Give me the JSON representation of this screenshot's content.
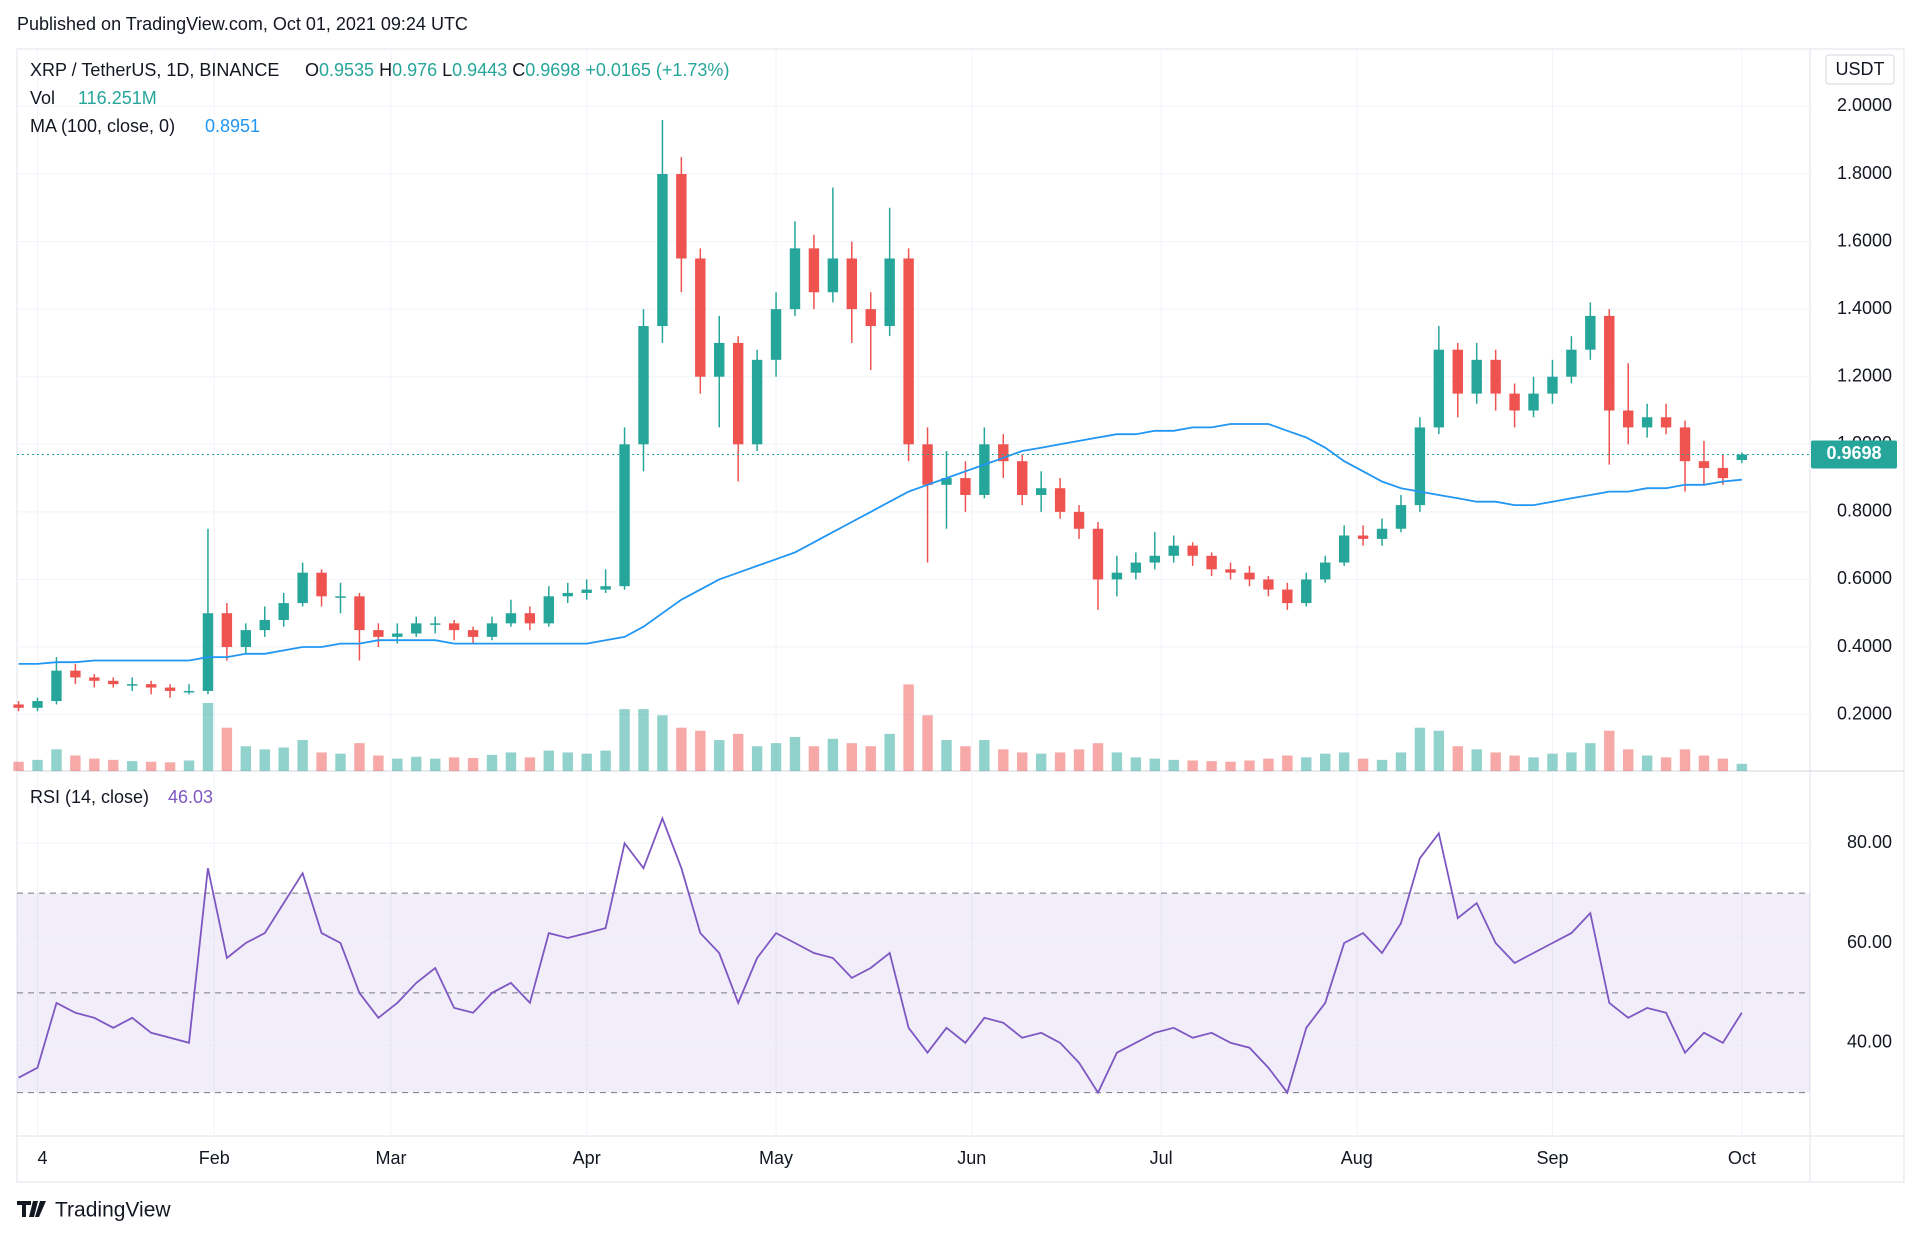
{
  "header": {
    "published": "Published on TradingView.com, Oct 01, 2021 09:24 UTC",
    "symbol": "XRP / TetherUS, 1D, BINANCE",
    "ohlc_letters": [
      "O",
      "H",
      "L",
      "C"
    ],
    "change": "+0.0165 (+1.73%)",
    "vol_value": "116.251M",
    "currency": "USDT",
    "logo": "TradingView"
  },
  "chart_data": [
    {
      "type": "candlestick",
      "up_color": "#26a69a",
      "down_color": "#ef5350",
      "x": [
        0,
        3,
        6,
        9,
        12,
        15,
        18,
        21,
        24,
        27,
        30,
        33,
        36,
        39,
        42,
        45,
        48,
        51,
        54,
        57,
        60,
        63,
        66,
        69,
        72,
        75,
        78,
        81,
        84,
        87,
        90,
        93,
        96,
        99,
        102,
        105,
        108,
        111,
        114,
        117,
        120,
        123,
        126,
        129,
        132,
        135,
        138,
        141,
        144,
        147,
        150,
        153,
        156,
        159,
        162,
        165,
        168,
        171,
        174,
        177,
        180,
        183,
        186,
        189,
        192,
        195,
        198,
        201,
        204,
        207,
        210,
        213,
        216,
        219,
        222,
        225,
        228,
        231,
        234,
        237,
        240,
        243,
        246,
        249,
        252,
        255,
        258,
        261,
        264,
        267,
        270,
        273
      ],
      "candles": [
        [
          0.23,
          0.24,
          0.21,
          0.22
        ],
        [
          0.22,
          0.25,
          0.21,
          0.24
        ],
        [
          0.24,
          0.37,
          0.23,
          0.33
        ],
        [
          0.33,
          0.35,
          0.29,
          0.31
        ],
        [
          0.31,
          0.32,
          0.28,
          0.3
        ],
        [
          0.3,
          0.31,
          0.28,
          0.29
        ],
        [
          0.29,
          0.31,
          0.27,
          0.29
        ],
        [
          0.29,
          0.3,
          0.26,
          0.28
        ],
        [
          0.28,
          0.29,
          0.25,
          0.27
        ],
        [
          0.27,
          0.29,
          0.26,
          0.27
        ],
        [
          0.27,
          0.75,
          0.26,
          0.5
        ],
        [
          0.5,
          0.53,
          0.36,
          0.4
        ],
        [
          0.4,
          0.47,
          0.38,
          0.45
        ],
        [
          0.45,
          0.52,
          0.43,
          0.48
        ],
        [
          0.48,
          0.56,
          0.46,
          0.53
        ],
        [
          0.53,
          0.65,
          0.52,
          0.62
        ],
        [
          0.62,
          0.63,
          0.52,
          0.55
        ],
        [
          0.55,
          0.59,
          0.5,
          0.55
        ],
        [
          0.55,
          0.56,
          0.36,
          0.45
        ],
        [
          0.45,
          0.47,
          0.4,
          0.43
        ],
        [
          0.43,
          0.47,
          0.41,
          0.44
        ],
        [
          0.44,
          0.49,
          0.43,
          0.47
        ],
        [
          0.47,
          0.49,
          0.44,
          0.47
        ],
        [
          0.47,
          0.48,
          0.42,
          0.45
        ],
        [
          0.45,
          0.46,
          0.41,
          0.43
        ],
        [
          0.43,
          0.49,
          0.42,
          0.47
        ],
        [
          0.47,
          0.54,
          0.46,
          0.5
        ],
        [
          0.5,
          0.52,
          0.45,
          0.47
        ],
        [
          0.47,
          0.58,
          0.46,
          0.55
        ],
        [
          0.55,
          0.59,
          0.53,
          0.56
        ],
        [
          0.56,
          0.6,
          0.54,
          0.57
        ],
        [
          0.57,
          0.63,
          0.56,
          0.58
        ],
        [
          0.58,
          1.05,
          0.57,
          1.0
        ],
        [
          1.0,
          1.4,
          0.92,
          1.35
        ],
        [
          1.35,
          1.96,
          1.3,
          1.8
        ],
        [
          1.8,
          1.85,
          1.45,
          1.55
        ],
        [
          1.55,
          1.58,
          1.15,
          1.2
        ],
        [
          1.2,
          1.38,
          1.05,
          1.3
        ],
        [
          1.3,
          1.32,
          0.89,
          1.0
        ],
        [
          1.0,
          1.28,
          0.98,
          1.25
        ],
        [
          1.25,
          1.45,
          1.2,
          1.4
        ],
        [
          1.4,
          1.66,
          1.38,
          1.58
        ],
        [
          1.58,
          1.62,
          1.4,
          1.45
        ],
        [
          1.45,
          1.76,
          1.42,
          1.55
        ],
        [
          1.55,
          1.6,
          1.3,
          1.4
        ],
        [
          1.4,
          1.45,
          1.22,
          1.35
        ],
        [
          1.35,
          1.7,
          1.32,
          1.55
        ],
        [
          1.55,
          1.58,
          0.95,
          1.0
        ],
        [
          1.0,
          1.05,
          0.65,
          0.88
        ],
        [
          0.88,
          0.98,
          0.75,
          0.9
        ],
        [
          0.9,
          0.95,
          0.8,
          0.85
        ],
        [
          0.85,
          1.05,
          0.84,
          1.0
        ],
        [
          1.0,
          1.03,
          0.9,
          0.95
        ],
        [
          0.95,
          0.97,
          0.82,
          0.85
        ],
        [
          0.85,
          0.92,
          0.8,
          0.87
        ],
        [
          0.87,
          0.9,
          0.78,
          0.8
        ],
        [
          0.8,
          0.82,
          0.72,
          0.75
        ],
        [
          0.75,
          0.77,
          0.51,
          0.6
        ],
        [
          0.6,
          0.67,
          0.55,
          0.62
        ],
        [
          0.62,
          0.68,
          0.6,
          0.65
        ],
        [
          0.65,
          0.74,
          0.63,
          0.67
        ],
        [
          0.67,
          0.73,
          0.65,
          0.7
        ],
        [
          0.7,
          0.71,
          0.64,
          0.67
        ],
        [
          0.67,
          0.68,
          0.61,
          0.63
        ],
        [
          0.63,
          0.65,
          0.6,
          0.62
        ],
        [
          0.62,
          0.64,
          0.58,
          0.6
        ],
        [
          0.6,
          0.61,
          0.55,
          0.57
        ],
        [
          0.57,
          0.59,
          0.51,
          0.53
        ],
        [
          0.53,
          0.62,
          0.52,
          0.6
        ],
        [
          0.6,
          0.67,
          0.59,
          0.65
        ],
        [
          0.65,
          0.76,
          0.64,
          0.73
        ],
        [
          0.73,
          0.76,
          0.7,
          0.72
        ],
        [
          0.72,
          0.78,
          0.7,
          0.75
        ],
        [
          0.75,
          0.85,
          0.74,
          0.82
        ],
        [
          0.82,
          1.08,
          0.8,
          1.05
        ],
        [
          1.05,
          1.35,
          1.03,
          1.28
        ],
        [
          1.28,
          1.3,
          1.08,
          1.15
        ],
        [
          1.15,
          1.3,
          1.12,
          1.25
        ],
        [
          1.25,
          1.28,
          1.1,
          1.15
        ],
        [
          1.15,
          1.18,
          1.05,
          1.1
        ],
        [
          1.1,
          1.2,
          1.08,
          1.15
        ],
        [
          1.15,
          1.25,
          1.12,
          1.2
        ],
        [
          1.2,
          1.32,
          1.18,
          1.28
        ],
        [
          1.28,
          1.42,
          1.25,
          1.38
        ],
        [
          1.38,
          1.4,
          0.94,
          1.1
        ],
        [
          1.1,
          1.24,
          1.0,
          1.05
        ],
        [
          1.05,
          1.12,
          1.02,
          1.08
        ],
        [
          1.08,
          1.12,
          1.03,
          1.05
        ],
        [
          1.05,
          1.07,
          0.86,
          0.95
        ],
        [
          0.95,
          1.01,
          0.88,
          0.93
        ],
        [
          0.93,
          0.97,
          0.88,
          0.9
        ],
        [
          0.9535,
          0.976,
          0.9443,
          0.9698
        ]
      ],
      "volume": {
        "name": "Vol",
        "values": [
          150,
          180,
          350,
          250,
          200,
          180,
          160,
          150,
          140,
          170,
          1100,
          700,
          400,
          350,
          380,
          500,
          300,
          280,
          450,
          250,
          200,
          230,
          200,
          220,
          210,
          260,
          300,
          220,
          330,
          300,
          280,
          330,
          1000,
          1000,
          900,
          700,
          650,
          500,
          600,
          400,
          450,
          550,
          400,
          520,
          450,
          400,
          600,
          1400,
          900,
          500,
          400,
          500,
          350,
          300,
          280,
          300,
          350,
          450,
          300,
          220,
          200,
          180,
          170,
          160,
          150,
          170,
          200,
          250,
          220,
          280,
          300,
          200,
          180,
          300,
          700,
          650,
          400,
          350,
          300,
          250,
          220,
          280,
          300,
          450,
          650,
          350,
          250,
          220,
          350,
          250,
          200,
          116.251
        ]
      },
      "ma": {
        "name": "MA (100, close, 0)",
        "color": "#2196f3",
        "values": [
          0.35,
          0.35,
          0.355,
          0.355,
          0.36,
          0.36,
          0.36,
          0.36,
          0.36,
          0.36,
          0.37,
          0.37,
          0.38,
          0.38,
          0.39,
          0.4,
          0.4,
          0.41,
          0.41,
          0.42,
          0.42,
          0.42,
          0.42,
          0.41,
          0.41,
          0.41,
          0.41,
          0.41,
          0.41,
          0.41,
          0.41,
          0.42,
          0.43,
          0.46,
          0.5,
          0.54,
          0.57,
          0.6,
          0.62,
          0.64,
          0.66,
          0.68,
          0.71,
          0.74,
          0.77,
          0.8,
          0.83,
          0.86,
          0.88,
          0.9,
          0.92,
          0.94,
          0.96,
          0.98,
          0.99,
          1.0,
          1.01,
          1.02,
          1.03,
          1.03,
          1.04,
          1.04,
          1.05,
          1.05,
          1.06,
          1.06,
          1.06,
          1.04,
          1.02,
          0.99,
          0.95,
          0.92,
          0.89,
          0.87,
          0.86,
          0.85,
          0.84,
          0.83,
          0.83,
          0.82,
          0.82,
          0.83,
          0.84,
          0.85,
          0.86,
          0.86,
          0.87,
          0.87,
          0.88,
          0.88,
          0.89,
          0.8951
        ]
      },
      "xlim": [
        -0.25,
        283.8
      ],
      "ylim": [
        0.033,
        2.17
      ],
      "yticks": [
        {
          "value": 0.2,
          "label": "0.2000"
        },
        {
          "value": 0.4,
          "label": "0.4000"
        },
        {
          "value": 0.6,
          "label": "0.6000"
        },
        {
          "value": 0.8,
          "label": "0.8000"
        },
        {
          "value": 1.0,
          "label": "1.0000"
        },
        {
          "value": 1.2,
          "label": "1.2000"
        },
        {
          "value": 1.4,
          "label": "1.4000"
        },
        {
          "value": 1.6,
          "label": "1.6000"
        },
        {
          "value": 1.8,
          "label": "1.8000"
        },
        {
          "value": 2.0,
          "label": "2.0000"
        }
      ],
      "grid": true
    },
    {
      "type": "line",
      "title": "RSI (14, close)",
      "color": "#7e57c2",
      "x": [
        0,
        3,
        6,
        9,
        12,
        15,
        18,
        21,
        24,
        27,
        30,
        33,
        36,
        39,
        42,
        45,
        48,
        51,
        54,
        57,
        60,
        63,
        66,
        69,
        72,
        75,
        78,
        81,
        84,
        87,
        90,
        93,
        96,
        99,
        102,
        105,
        108,
        111,
        114,
        117,
        120,
        123,
        126,
        129,
        132,
        135,
        138,
        141,
        144,
        147,
        150,
        153,
        156,
        159,
        162,
        165,
        168,
        171,
        174,
        177,
        180,
        183,
        186,
        189,
        192,
        195,
        198,
        201,
        204,
        207,
        210,
        213,
        216,
        219,
        222,
        225,
        228,
        231,
        234,
        237,
        240,
        243,
        246,
        249,
        252,
        255,
        258,
        261,
        264,
        267,
        270,
        273
      ],
      "values": [
        33,
        35,
        48,
        46,
        45,
        43,
        45,
        42,
        41,
        40,
        75,
        57,
        60,
        62,
        68,
        74,
        62,
        60,
        50,
        45,
        48,
        52,
        55,
        47,
        46,
        50,
        52,
        48,
        62,
        61,
        62,
        63,
        80,
        75,
        85,
        75,
        62,
        58,
        48,
        57,
        62,
        60,
        58,
        57,
        53,
        55,
        58,
        43,
        38,
        43,
        40,
        45,
        44,
        41,
        42,
        40,
        36,
        30,
        38,
        40,
        42,
        43,
        41,
        42,
        40,
        39,
        35,
        30,
        43,
        48,
        60,
        62,
        58,
        64,
        77,
        82,
        65,
        68,
        60,
        56,
        58,
        60,
        62,
        66,
        48,
        45,
        47,
        46,
        38,
        42,
        40,
        46.03
      ],
      "bands": [
        30,
        50,
        70
      ],
      "xlim": [
        -0.25,
        283.8
      ],
      "ylim": [
        21.3,
        94.5
      ],
      "yticks": [
        {
          "value": 40,
          "label": "40.00"
        },
        {
          "value": 60,
          "label": "60.00"
        },
        {
          "value": 80,
          "label": "80.00"
        }
      ],
      "xticks": [
        {
          "value": 3,
          "label": "4"
        },
        {
          "value": 31,
          "label": "Feb"
        },
        {
          "value": 59,
          "label": "Mar"
        },
        {
          "value": 90,
          "label": "Apr"
        },
        {
          "value": 120,
          "label": "May"
        },
        {
          "value": 151,
          "label": "Jun"
        },
        {
          "value": 181,
          "label": "Jul"
        },
        {
          "value": 212,
          "label": "Aug"
        },
        {
          "value": 243,
          "label": "Sep"
        },
        {
          "value": 273,
          "label": "Oct"
        }
      ],
      "grid": true
    }
  ]
}
